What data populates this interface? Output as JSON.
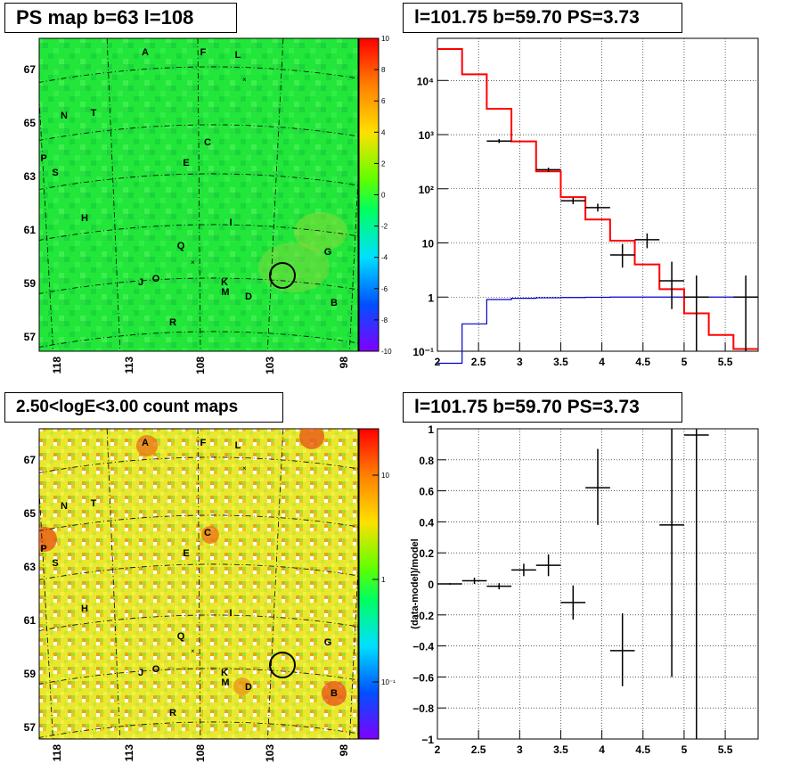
{
  "titles": {
    "tl": "PS map b=63 l=108",
    "tr": "l=101.75 b=59.70 PS=3.73",
    "bl": "2.50<logE<3.00 count maps",
    "br": "l=101.75 b=59.70 PS=3.73"
  },
  "maps": {
    "lat_ticks": [
      "67",
      "65",
      "63",
      "61",
      "59",
      "57"
    ],
    "lon_ticks": [
      "118",
      "113",
      "108",
      "103",
      "98"
    ],
    "ps_colorbar_ticks": [
      "10",
      "8",
      "6",
      "4",
      "2",
      "0",
      "-2",
      "-4",
      "-6",
      "-8",
      "-10"
    ],
    "count_colorbar_ticks": [
      "10",
      "1",
      "10⁻¹"
    ],
    "sources": [
      "A",
      "F",
      "L",
      "N",
      "T",
      "C",
      "P",
      "S",
      "E",
      "H",
      "I",
      "Q",
      "G",
      "J",
      "O",
      "K",
      "M",
      "D",
      "B",
      "R"
    ],
    "colors": {
      "ps_bg": "#1fe83c",
      "count_bg": "#f0e830",
      "circle": "#000000"
    }
  },
  "chart_data": [
    {
      "type": "line",
      "name": "spectrum",
      "log_y": true,
      "xlim": [
        2,
        5.9
      ],
      "ylim": [
        0.1,
        60000
      ],
      "x_ticks": [
        "2",
        "2.5",
        "3",
        "3.5",
        "4",
        "4.5",
        "5",
        "5.5"
      ],
      "y_ticks": [
        "10⁻¹",
        "1",
        "10",
        "10²",
        "10³",
        "10⁴"
      ],
      "model_edges": [
        2.0,
        2.3,
        2.6,
        2.9,
        3.2,
        3.5,
        3.8,
        4.1,
        4.4,
        4.7,
        5.0,
        5.3,
        5.6,
        5.9
      ],
      "model_total": [
        38000,
        13000,
        3000,
        750,
        210,
        70,
        27,
        11,
        4,
        1.4,
        0.5,
        0.2,
        0.11
      ],
      "model_ps": [
        0.06,
        0.32,
        0.9,
        0.95,
        0.97,
        0.98,
        0.99,
        1.0,
        1.0,
        1.0,
        1.0,
        1.0,
        1.0
      ],
      "data_points": [
        {
          "x": 2.75,
          "xerr": 0.15,
          "y": 760,
          "ylo": 700,
          "yhi": 830
        },
        {
          "x": 3.35,
          "xerr": 0.15,
          "y": 225,
          "ylo": 205,
          "yhi": 245
        },
        {
          "x": 3.65,
          "xerr": 0.15,
          "y": 60,
          "ylo": 52,
          "yhi": 68
        },
        {
          "x": 3.95,
          "xerr": 0.15,
          "y": 45,
          "ylo": 38,
          "yhi": 53
        },
        {
          "x": 4.25,
          "xerr": 0.15,
          "y": 6,
          "ylo": 3.5,
          "yhi": 9.5
        },
        {
          "x": 4.55,
          "xerr": 0.15,
          "y": 11.5,
          "ylo": 8,
          "yhi": 15
        },
        {
          "x": 4.85,
          "xerr": 0.15,
          "y": 2,
          "ylo": 0.6,
          "yhi": 4.5
        },
        {
          "x": 5.15,
          "xerr": 0.15,
          "y": 1,
          "ylo": 0.1,
          "yhi": 2.5
        },
        {
          "x": 5.75,
          "xerr": 0.15,
          "y": 1,
          "ylo": 0.1,
          "yhi": 2.5
        }
      ],
      "colors": {
        "total": "#ff0000",
        "ps": "#0000cc",
        "data": "#000000"
      }
    },
    {
      "type": "scatter",
      "name": "residuals",
      "xlim": [
        2,
        5.9
      ],
      "ylim": [
        -1,
        1
      ],
      "ylabel": "(data-model)/model",
      "x_ticks": [
        "2",
        "2.5",
        "3",
        "3.5",
        "4",
        "4.5",
        "5",
        "5.5"
      ],
      "y_ticks": [
        "1",
        "0.8",
        "0.6",
        "0.4",
        "0.2",
        "0",
        "−0.2",
        "−0.4",
        "−0.6",
        "−0.8",
        "−1"
      ],
      "points": [
        {
          "x": 2.15,
          "xerr": 0.15,
          "y": 0.0,
          "ylo": -0.005,
          "yhi": 0.005
        },
        {
          "x": 2.45,
          "xerr": 0.15,
          "y": 0.02,
          "ylo": 0.0,
          "yhi": 0.04
        },
        {
          "x": 2.75,
          "xerr": 0.15,
          "y": -0.015,
          "ylo": -0.035,
          "yhi": 0.005
        },
        {
          "x": 3.05,
          "xerr": 0.15,
          "y": 0.09,
          "ylo": 0.05,
          "yhi": 0.13
        },
        {
          "x": 3.35,
          "xerr": 0.15,
          "y": 0.12,
          "ylo": 0.05,
          "yhi": 0.19
        },
        {
          "x": 3.65,
          "xerr": 0.15,
          "y": -0.12,
          "ylo": -0.23,
          "yhi": -0.01
        },
        {
          "x": 3.95,
          "xerr": 0.15,
          "y": 0.62,
          "ylo": 0.38,
          "yhi": 0.87
        },
        {
          "x": 4.25,
          "xerr": 0.15,
          "y": -0.43,
          "ylo": -0.66,
          "yhi": -0.19
        },
        {
          "x": 4.85,
          "xerr": 0.15,
          "y": 0.38,
          "ylo": -0.6,
          "yhi": 1.0
        },
        {
          "x": 5.15,
          "xerr": 0.15,
          "y": 0.96,
          "ylo": -1.0,
          "yhi": 1.0
        }
      ]
    }
  ]
}
